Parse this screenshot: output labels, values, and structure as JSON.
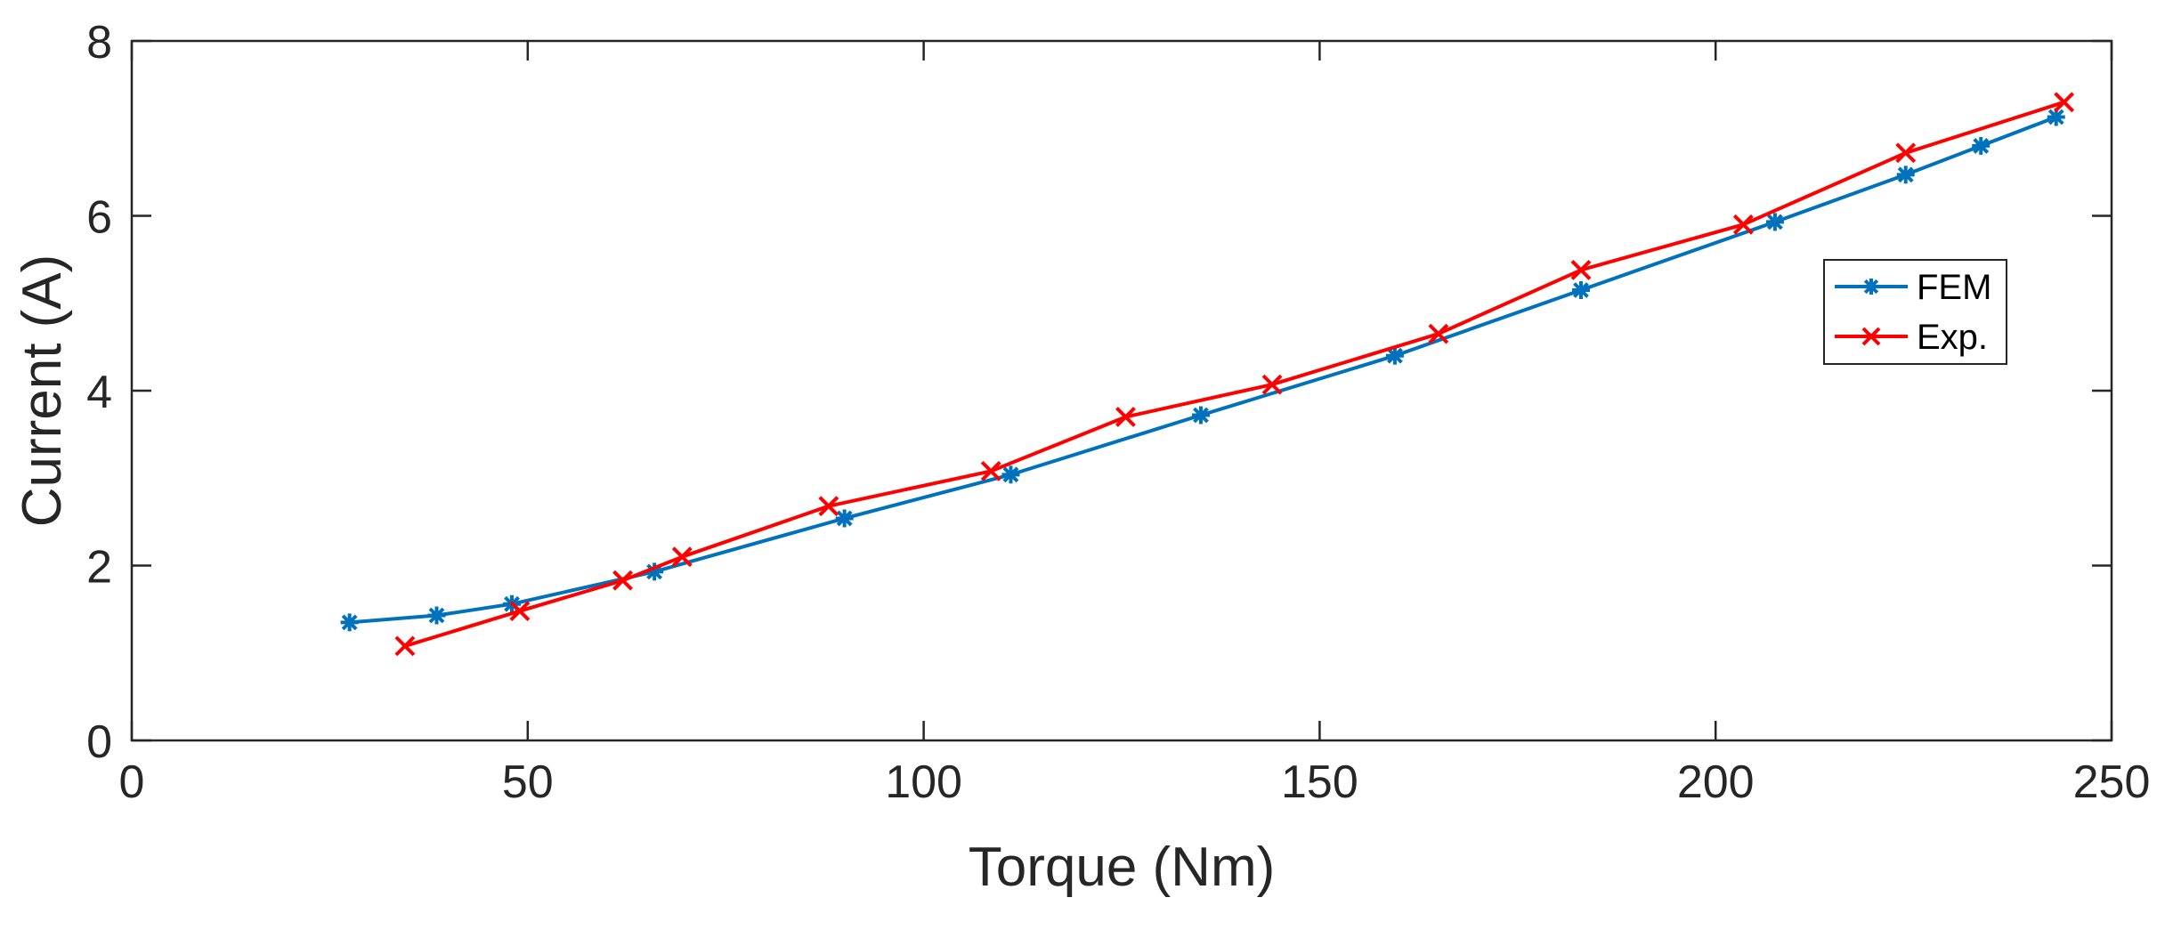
{
  "chart_data": {
    "type": "line",
    "xlabel": "Torque (Nm)",
    "ylabel": "Current (A)",
    "xlim": [
      0,
      250
    ],
    "ylim": [
      0,
      8
    ],
    "xticks": [
      0,
      50,
      100,
      150,
      200,
      250
    ],
    "yticks": [
      0,
      2,
      4,
      6,
      8
    ],
    "xtick_labels": [
      "0",
      "50",
      "100",
      "150",
      "200",
      "250"
    ],
    "ytick_labels": [
      "0",
      "2",
      "4",
      "6",
      "8"
    ],
    "grid": false,
    "box": true,
    "legend_position": "right, upper-middle",
    "series": [
      {
        "name": "FEM",
        "color": "#0072BD",
        "marker": "asterisk",
        "x": [
          27.5,
          38.5,
          48,
          66,
          90,
          111,
          135,
          159.5,
          183,
          207.5,
          224,
          233.5,
          243
        ],
        "y": [
          1.35,
          1.43,
          1.56,
          1.93,
          2.54,
          3.04,
          3.72,
          4.4,
          5.15,
          5.93,
          6.47,
          6.8,
          7.13
        ]
      },
      {
        "name": "Exp.",
        "color": "#FF0000",
        "marker": "x",
        "x": [
          34.5,
          49,
          62,
          69.5,
          88,
          108.5,
          125.5,
          144,
          165,
          183,
          203.5,
          224,
          244
        ],
        "y": [
          1.08,
          1.48,
          1.83,
          2.1,
          2.68,
          3.08,
          3.7,
          4.07,
          4.65,
          5.38,
          5.9,
          6.72,
          7.3
        ]
      }
    ]
  }
}
